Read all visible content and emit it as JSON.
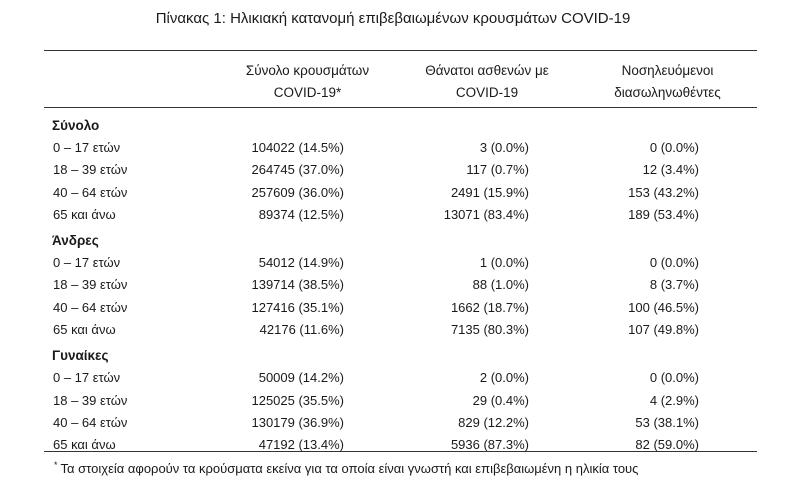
{
  "title": "Πίνακας 1: Ηλικιακή κατανομή επιβεβαιωμένων κρουσμάτων COVID-19",
  "headers": {
    "col1_line1": "Σύνολο κρουσμάτων",
    "col1_line2": "COVID-19*",
    "col2_line1": "Θάνατοι ασθενών με",
    "col2_line2": "COVID-19",
    "col3_line1": "Νοσηλευόμενοι",
    "col3_line2": "διασωληνωθέντες"
  },
  "groups": [
    {
      "label": "Σύνολο",
      "rows": [
        {
          "age": "0 – 17 ετών",
          "cases": "104022 (14.5%)",
          "deaths": "3 (0.0%)",
          "intubated": "0 (0.0%)"
        },
        {
          "age": "18 – 39 ετών",
          "cases": "264745 (37.0%)",
          "deaths": "117 (0.7%)",
          "intubated": "12 (3.4%)"
        },
        {
          "age": "40 – 64 ετών",
          "cases": "257609 (36.0%)",
          "deaths": "2491 (15.9%)",
          "intubated": "153 (43.2%)"
        },
        {
          "age": "65 και άνω",
          "cases": "89374 (12.5%)",
          "deaths": "13071 (83.4%)",
          "intubated": "189 (53.4%)"
        }
      ]
    },
    {
      "label": "Άνδρες",
      "rows": [
        {
          "age": "0 – 17 ετών",
          "cases": "54012 (14.9%)",
          "deaths": "1 (0.0%)",
          "intubated": "0 (0.0%)"
        },
        {
          "age": "18 – 39 ετών",
          "cases": "139714 (38.5%)",
          "deaths": "88 (1.0%)",
          "intubated": "8 (3.7%)"
        },
        {
          "age": "40 – 64 ετών",
          "cases": "127416 (35.1%)",
          "deaths": "1662 (18.7%)",
          "intubated": "100 (46.5%)"
        },
        {
          "age": "65 και άνω",
          "cases": "42176 (11.6%)",
          "deaths": "7135 (80.3%)",
          "intubated": "107 (49.8%)"
        }
      ]
    },
    {
      "label": "Γυναίκες",
      "rows": [
        {
          "age": "0 – 17 ετών",
          "cases": "50009 (14.2%)",
          "deaths": "2 (0.0%)",
          "intubated": "0 (0.0%)"
        },
        {
          "age": "18 – 39 ετών",
          "cases": "125025 (35.5%)",
          "deaths": "29 (0.4%)",
          "intubated": "4 (2.9%)"
        },
        {
          "age": "40 – 64 ετών",
          "cases": "130179 (36.9%)",
          "deaths": "829 (12.2%)",
          "intubated": "53 (38.1%)"
        },
        {
          "age": "65 και άνω",
          "cases": "47192 (13.4%)",
          "deaths": "5936 (87.3%)",
          "intubated": "82 (59.0%)"
        }
      ]
    }
  ],
  "footnote": {
    "marker": "*",
    "text": "Τα στοιχεία αφορούν τα κρούσματα εκείνα για τα οποία είναι γνωστή και επιβεβαιωμένη η ηλικία τους"
  }
}
